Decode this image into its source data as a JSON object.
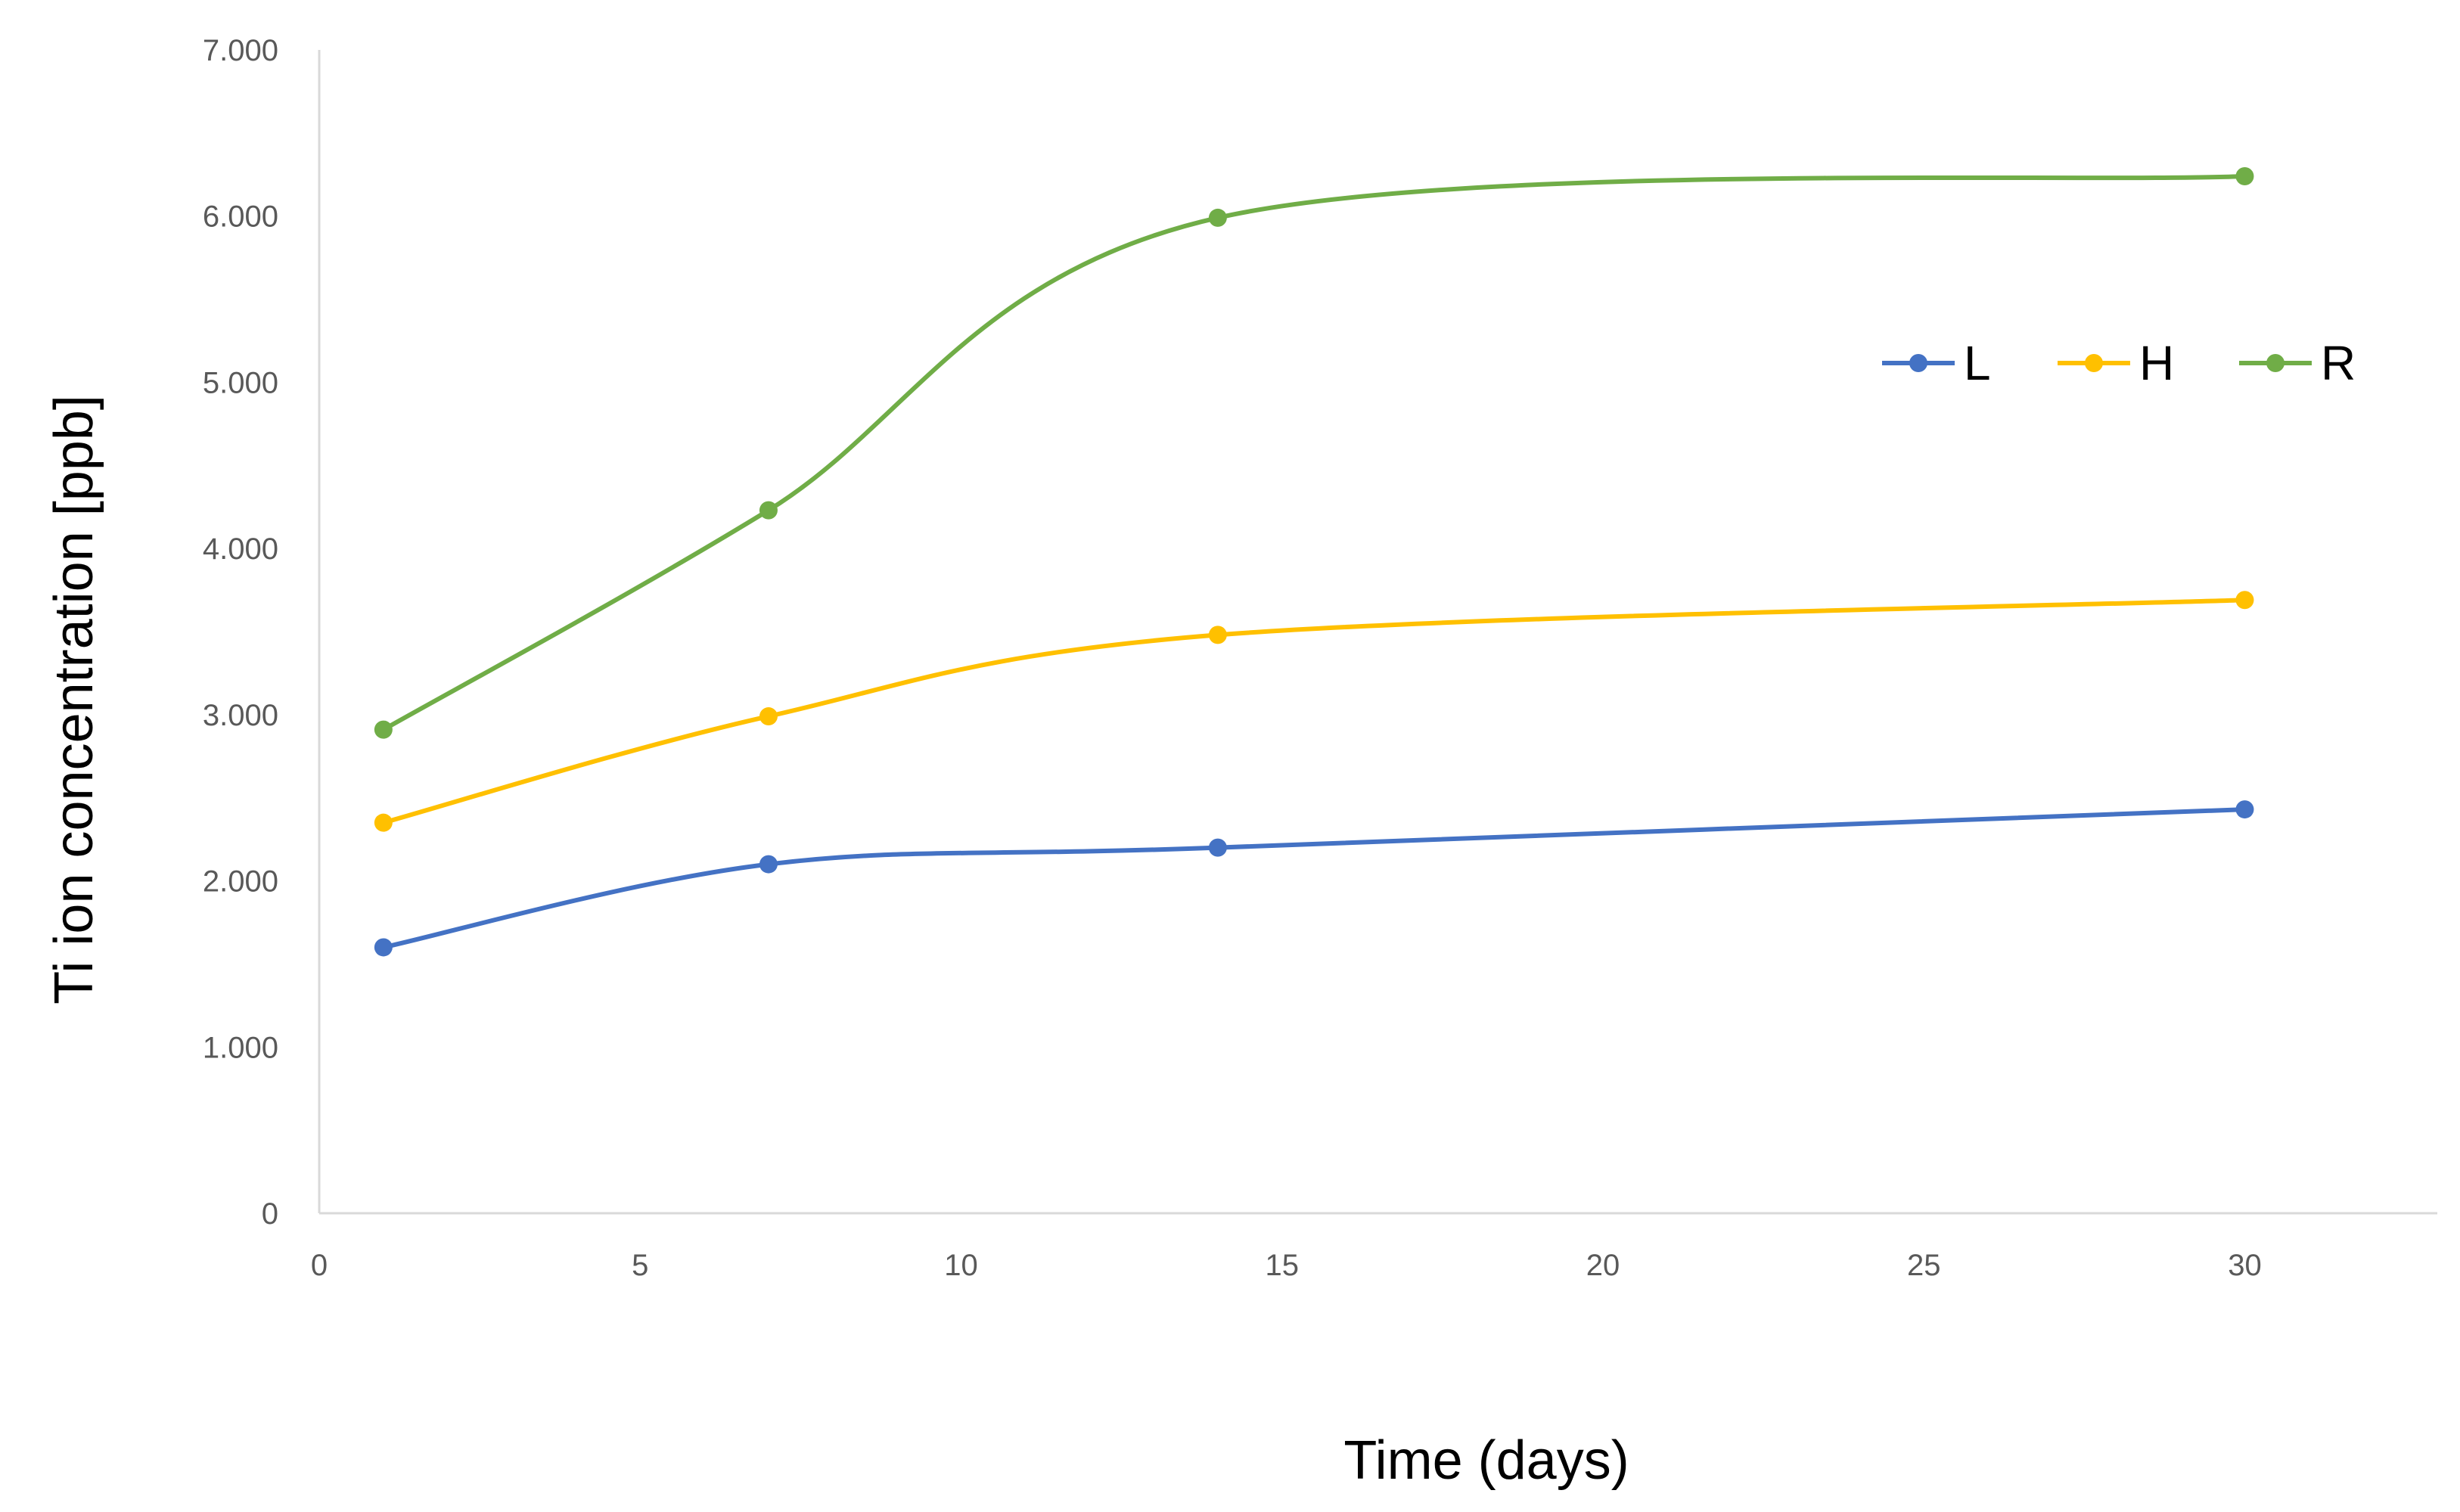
{
  "chart_data": {
    "type": "line",
    "xlabel": "Time  (days)",
    "ylabel": "Ti ion concentration [ppb]",
    "x": [
      1,
      7,
      14,
      30
    ],
    "xlim": [
      0,
      33
    ],
    "ylim": [
      0,
      7000
    ],
    "x_ticks": [
      0,
      5,
      10,
      15,
      20,
      25,
      30
    ],
    "x_tick_labels": [
      "0",
      "5",
      "10",
      "15",
      "20",
      "25",
      "30"
    ],
    "y_ticks": [
      0,
      1000,
      2000,
      3000,
      4000,
      5000,
      6000,
      7000
    ],
    "y_tick_labels": [
      "0",
      "1.000",
      "2.000",
      "3.000",
      "4.000",
      "5.000",
      "6.000",
      "7.000"
    ],
    "grid": false,
    "smoothed": true,
    "legend_position": "top-right",
    "series": [
      {
        "name": "L",
        "color": "#4472C4",
        "values": [
          1600,
          2100,
          2200,
          2430
        ]
      },
      {
        "name": "H",
        "color": "#FFC000",
        "values": [
          2350,
          2990,
          3480,
          3690
        ]
      },
      {
        "name": "R",
        "color": "#70AD47",
        "values": [
          2910,
          4230,
          5990,
          6240
        ]
      }
    ]
  }
}
